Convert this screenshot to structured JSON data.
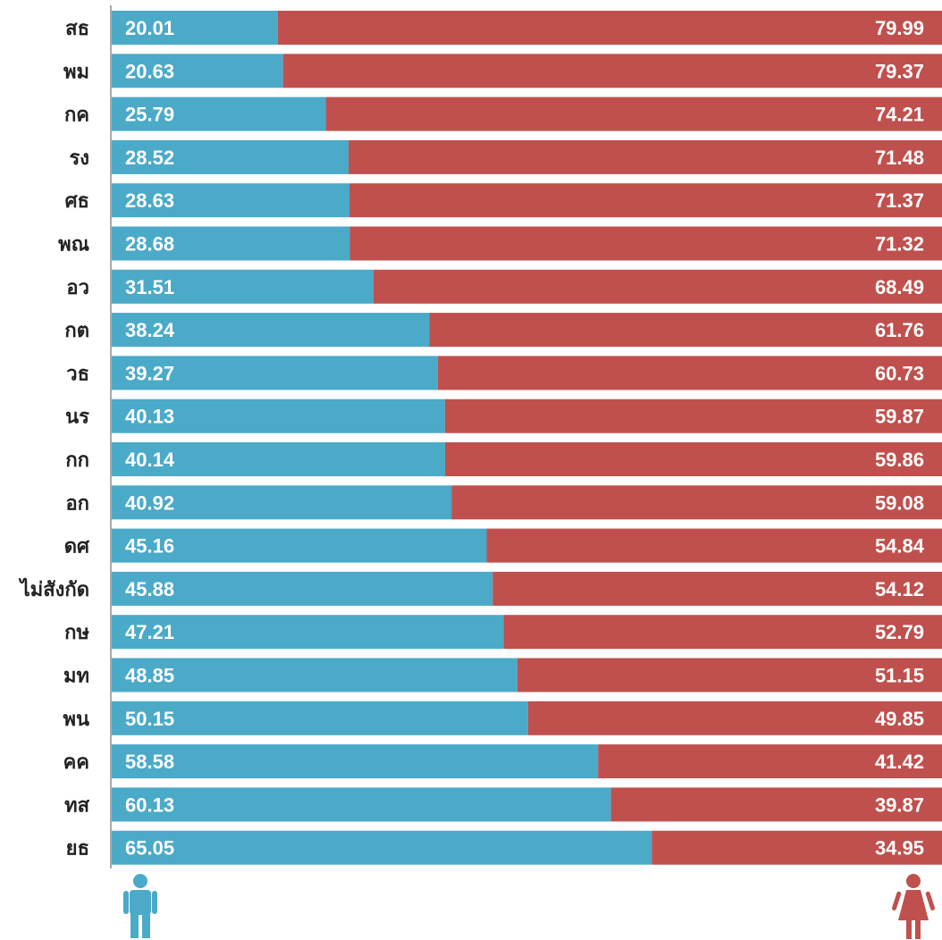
{
  "chart_data": {
    "type": "bar",
    "orientation": "horizontal",
    "stacked": true,
    "percent_stacked": true,
    "categories": [
      "สธ",
      "พม",
      "กค",
      "รง",
      "ศธ",
      "พณ",
      "อว",
      "กต",
      "วธ",
      "นร",
      "กก",
      "อก",
      "ดศ",
      "ไม่สังกัด",
      "กษ",
      "มท",
      "พน",
      "คค",
      "ทส",
      "ยธ"
    ],
    "series": [
      {
        "key": "male",
        "color": "#4aaac8",
        "icon": "male-person-icon",
        "values": [
          20.01,
          20.63,
          25.79,
          28.52,
          28.63,
          28.68,
          31.51,
          38.24,
          39.27,
          40.13,
          40.14,
          40.92,
          45.16,
          45.88,
          47.21,
          48.85,
          50.15,
          58.58,
          60.13,
          65.05
        ]
      },
      {
        "key": "female",
        "color": "#c0504d",
        "icon": "female-person-icon",
        "values": [
          79.99,
          79.37,
          74.21,
          71.48,
          71.37,
          71.32,
          68.49,
          61.76,
          60.73,
          59.87,
          59.86,
          59.08,
          54.84,
          54.12,
          52.79,
          51.15,
          49.85,
          41.42,
          39.87,
          34.95
        ]
      }
    ],
    "xlim": [
      0,
      100
    ],
    "grid": false,
    "legend": "icons at bottom-left and bottom-right",
    "title": "",
    "xlabel": "",
    "ylabel": ""
  }
}
